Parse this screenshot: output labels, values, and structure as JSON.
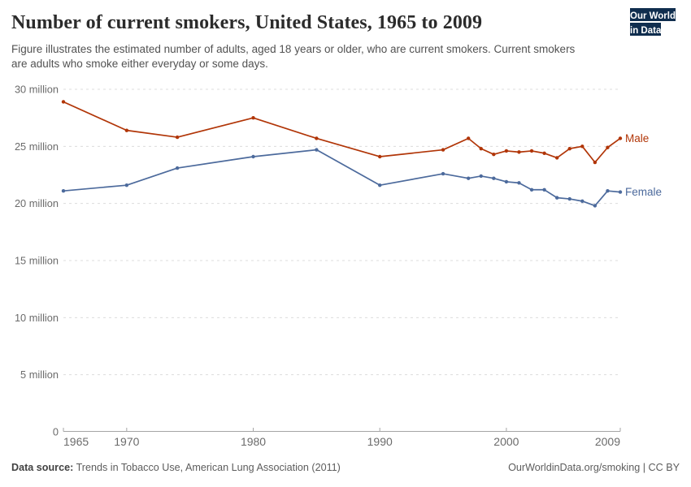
{
  "header": {
    "title": "Number of current smokers, United States, 1965 to 2009",
    "subtitle": "Figure illustrates the estimated number of adults, aged 18 years or older, who are current smokers. Current smokers are adults who smoke either everyday or some days.",
    "logo": {
      "line1": "Our World",
      "line2": "in Data"
    }
  },
  "chart_data": {
    "type": "line",
    "title": "Number of current smokers, United States, 1965 to 2009",
    "x": [
      1965,
      1970,
      1974,
      1980,
      1985,
      1990,
      1995,
      1997,
      1998,
      1999,
      2000,
      2001,
      2002,
      2003,
      2004,
      2005,
      2006,
      2007,
      2008,
      2009
    ],
    "series": [
      {
        "name": "Male",
        "color": "#b13507",
        "values": [
          28.9,
          26.4,
          25.8,
          27.5,
          25.7,
          24.1,
          24.7,
          25.7,
          24.8,
          24.3,
          24.6,
          24.5,
          24.6,
          24.4,
          24.0,
          24.8,
          25.0,
          23.6,
          24.9,
          25.7
        ]
      },
      {
        "name": "Female",
        "color": "#4c6a9c",
        "values": [
          21.1,
          21.6,
          23.1,
          24.1,
          24.7,
          21.6,
          22.6,
          22.2,
          22.4,
          22.2,
          21.9,
          21.8,
          21.2,
          21.2,
          20.5,
          20.4,
          20.2,
          19.8,
          21.1,
          21.0
        ]
      }
    ],
    "unit": "million",
    "ylim": [
      0,
      30
    ],
    "yticks": [
      {
        "value": 0,
        "label": "0"
      },
      {
        "value": 5,
        "label": "5 million"
      },
      {
        "value": 10,
        "label": "10 million"
      },
      {
        "value": 15,
        "label": "15 million"
      },
      {
        "value": 20,
        "label": "20 million"
      },
      {
        "value": 25,
        "label": "25 million"
      },
      {
        "value": 30,
        "label": "30 million"
      }
    ],
    "xticks": [
      1965,
      1970,
      1980,
      1990,
      2000,
      2009
    ],
    "grid": "horizontal-dashed",
    "legend_position": "end-of-line-labels"
  },
  "footer": {
    "source_label": "Data source:",
    "source_text": " Trends in Tobacco Use, American Lung Association (2011)",
    "credit_url": "OurWorldinData.org/smoking",
    "credit_suffix": " | CC BY"
  },
  "colors": {
    "male": "#b13507",
    "female": "#4c6a9c",
    "grid": "#dcdcdc",
    "axis": "#a5a5a5",
    "tick_text": "#6b6b6b",
    "title_text": "#2b2b2b",
    "subtitle_text": "#525252",
    "footer_text": "#5c5c5c",
    "logo_bg": "#0f2d4e",
    "logo_accent": "#cc3232"
  }
}
